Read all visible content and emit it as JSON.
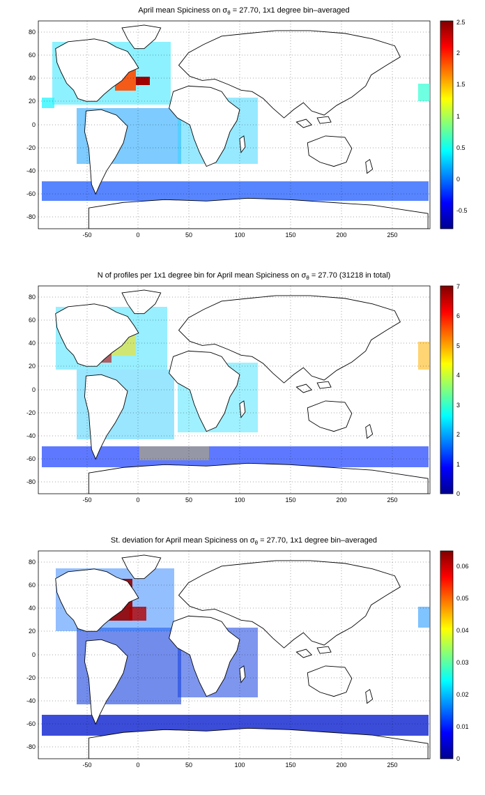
{
  "figure": {
    "panels": [
      {
        "id": "mean",
        "title_main": "April mean Spiciness on σ",
        "title_sub": "θ",
        "title_tail": " = 27.70, 1x1 degree bin–averaged",
        "colorbar": {
          "min": -0.8,
          "max": 2.5,
          "ticks": [
            "-0.5",
            "0",
            "0.5",
            "1",
            "1.5",
            "2",
            "2.5"
          ],
          "tick_values": [
            -0.5,
            0,
            0.5,
            1,
            1.5,
            2,
            2.5
          ]
        }
      },
      {
        "id": "count",
        "title_main": "N of profiles per 1x1 degree bin for April mean Spiciness on σ",
        "title_sub": "θ",
        "title_tail": " = 27.70 (31218 in total)",
        "colorbar": {
          "min": 0,
          "max": 7,
          "ticks": [
            "0",
            "1",
            "2",
            "3",
            "4",
            "5",
            "6",
            "7"
          ],
          "tick_values": [
            0,
            1,
            2,
            3,
            4,
            5,
            6,
            7
          ]
        }
      },
      {
        "id": "std",
        "title_main": "St. deviation for April mean Spiciness on σ",
        "title_sub": "θ",
        "title_tail": " = 27.70, 1x1 degree bin–averaged",
        "colorbar": {
          "min": 0,
          "max": 0.065,
          "ticks": [
            "0",
            "0.01",
            "0.02",
            "0.03",
            "0.04",
            "0.05",
            "0.06"
          ],
          "tick_values": [
            0,
            0.01,
            0.02,
            0.03,
            0.04,
            0.05,
            0.06
          ]
        }
      }
    ],
    "x_ticks": [
      "-50",
      "0",
      "50",
      "100",
      "150",
      "200",
      "250"
    ],
    "x_tick_values": [
      -50,
      0,
      50,
      100,
      150,
      200,
      250
    ],
    "y_ticks": [
      "80",
      "60",
      "40",
      "20",
      "0",
      "-20",
      "-40",
      "-60",
      "-80"
    ],
    "y_tick_values": [
      80,
      60,
      40,
      20,
      0,
      -20,
      -40,
      -60,
      -80
    ],
    "lon_range": [
      -95,
      290
    ],
    "lat_range": [
      -90,
      90
    ],
    "colormap": "jet"
  }
}
